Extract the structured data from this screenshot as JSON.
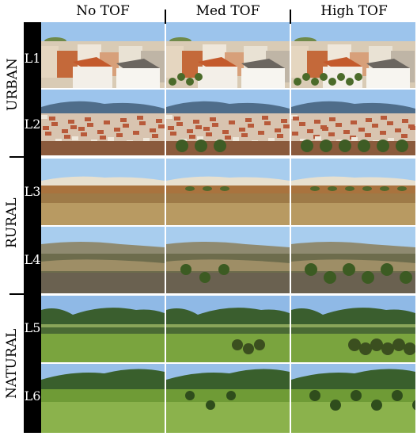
{
  "columns": [
    "No TOF",
    "Med TOF",
    "High TOF"
  ],
  "categories": {
    "urban": "URBAN",
    "rural": "RURAL",
    "natural": "NATURAL"
  },
  "levels": [
    "L1",
    "L2",
    "L3",
    "L4",
    "L5",
    "L6"
  ],
  "colors": {
    "sky": "#8fb9e6",
    "urban_roof": "#c9703f",
    "rural_field": "#b0864e",
    "natural_green": "#6e9a3a"
  }
}
